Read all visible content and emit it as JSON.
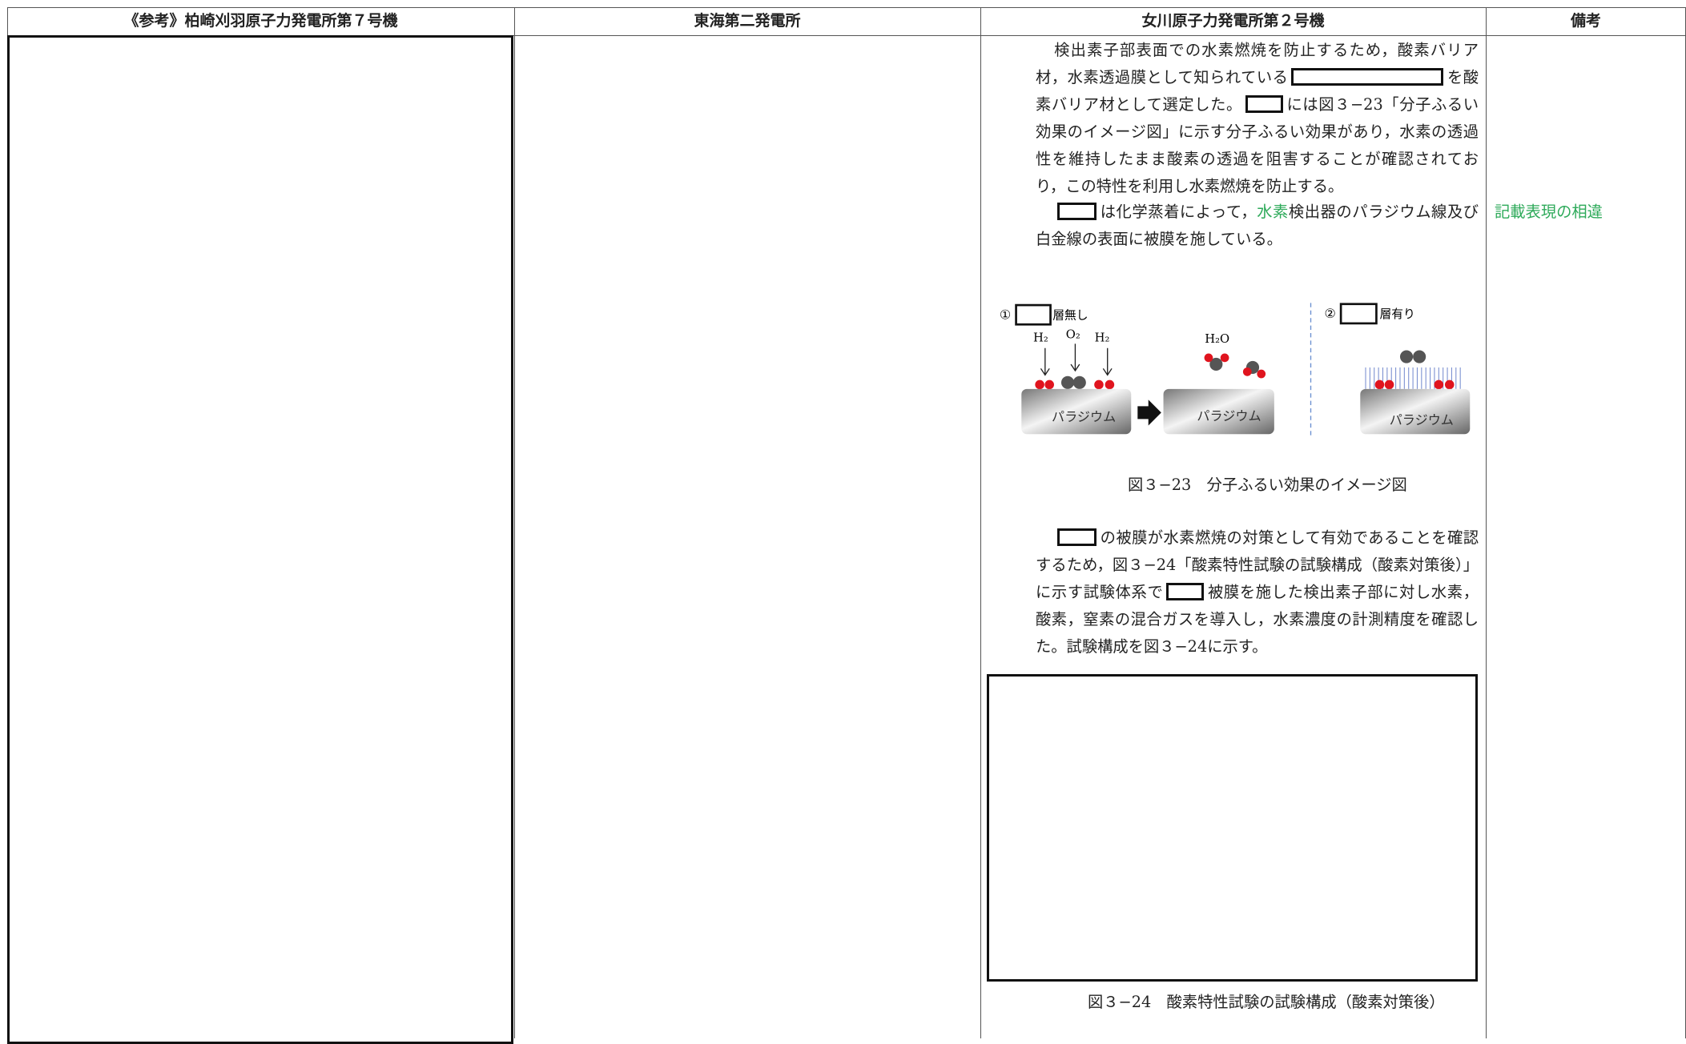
{
  "header": {
    "columns": [
      "《参考》柏崎刈羽原子力発電所第７号機",
      "東海第二発電所",
      "女川原子力発電所第２号機",
      "備考"
    ]
  },
  "body": {
    "para1": [
      "検出素子部表面での水素燃焼を防止するため，酸素バリア材，水素透過膜として知られている",
      "を酸素バリア材として選定した。",
      "には図３−23「分子ふるい効果のイメージ図」に示す分子ふるい効果があり，水素の透過性を維持したまま酸素の透過を阻害することが確認されており，この特性を利用し水素燃焼を防止する。"
    ],
    "para2": [
      "は化学蒸着によって，",
      "水素",
      "検出器のパラジウム線及び白金線の表面に被膜を施している。"
    ],
    "figure1": {
      "left_number": "①",
      "left_label": "層無し",
      "h2_a": "H₂",
      "o2": "O₂",
      "h2_b": "H₂",
      "h2o": "H₂O",
      "block_a": "パラジウム",
      "block_b": "パラジウム",
      "right_number": "②",
      "right_label": "層有り",
      "block_c": "パラジウム",
      "caption": "図３−23　分子ふるい効果のイメージ図"
    },
    "para3": [
      "の被膜が水素燃焼の対策として有効であることを確認するため，図３−24「酸素特性試験の試験構成（酸素対策後）」に示す試験体系で",
      "被膜を施した検出素子部に対し水素，酸素，窒素の混合ガスを導入し，水素濃度の計測精度を確認した。試験構成を図３−24に示す。"
    ],
    "figure2": {
      "caption": "図３−24　酸素特性試験の試験構成（酸素対策後）"
    },
    "remark": "記載表現の相違"
  }
}
